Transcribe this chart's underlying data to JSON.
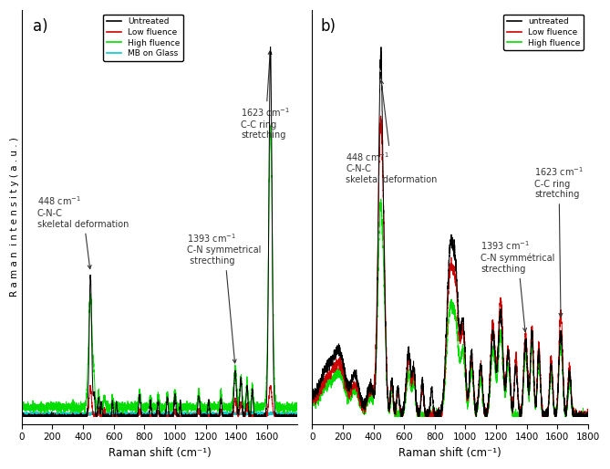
{
  "xlabel": "Raman shift (cm⁻¹)",
  "ylabel": "R a m a n  i n t e n s i t y ( a . u . )",
  "panel_a_label": "a)",
  "panel_b_label": "b)",
  "legend_a": [
    "Untreated",
    "Low fluence",
    "High fluence",
    "MB on Glass"
  ],
  "legend_b": [
    "untreated",
    "Low fluence",
    "High fluence"
  ],
  "color_black": "#000000",
  "color_red": "#cc0000",
  "color_green": "#00dd00",
  "color_cyan": "#00cccc",
  "background_color": "white",
  "figsize": [
    6.69,
    5.14
  ],
  "dpi": 100
}
